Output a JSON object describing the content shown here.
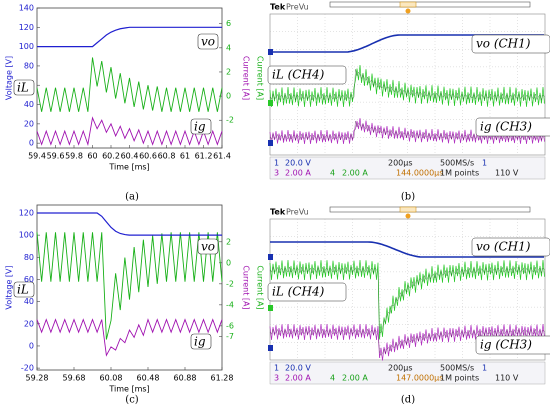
{
  "chart_data": [
    {
      "type": "line",
      "xlabel": "Time [ms]",
      "ylabel": "Voltage [V]",
      "y2labels": [
        "Current [A]",
        "Current [A]"
      ],
      "xlim": [
        59.4,
        61.4
      ],
      "xticks": [
        59.4,
        59.6,
        59.8,
        60,
        60.2,
        60.4,
        60.6,
        60.8,
        61,
        61.2,
        61.4
      ],
      "ylim": [
        -5,
        140
      ],
      "yticks": [
        0,
        20,
        40,
        60,
        80,
        100,
        120,
        140
      ],
      "y2lim": [
        -4.3,
        7.3
      ],
      "y2ticks": [
        6,
        4,
        2,
        0,
        -2
      ],
      "x": [
        59.4,
        59.45,
        59.5,
        59.55,
        59.6,
        59.65,
        59.7,
        59.75,
        59.8,
        59.85,
        59.9,
        59.95,
        60,
        60.05,
        60.1,
        60.15,
        60.2,
        60.25,
        60.3,
        60.35,
        60.4,
        60.45,
        60.5,
        60.55,
        60.6,
        60.65,
        60.7,
        60.75,
        60.8,
        60.85,
        60.9,
        60.95,
        61,
        61.05,
        61.1,
        61.15,
        61.2,
        61.25,
        61.3,
        61.35,
        61.4
      ],
      "series": [
        {
          "name": "vo",
          "color": "#2020d0",
          "values": [
            100,
            100,
            100,
            100,
            100,
            100,
            100,
            100,
            100,
            100,
            100,
            100,
            100,
            104,
            108,
            112,
            115,
            117,
            118.5,
            119.3,
            120,
            120,
            120,
            120,
            120,
            120,
            120,
            120,
            120,
            120,
            120,
            120,
            120,
            120,
            120,
            120,
            120,
            120,
            120,
            120,
            120
          ]
        },
        {
          "name": "iL",
          "color": "#18b018",
          "axis": "y2",
          "values": [
            0.7,
            -1.3,
            0.7,
            -1.3,
            0.7,
            -1.3,
            0.7,
            -1.3,
            0.7,
            -1.3,
            0.7,
            -1.3,
            3.2,
            0.8,
            2.9,
            0.3,
            2.4,
            -0.2,
            1.9,
            -0.6,
            1.5,
            -0.9,
            1.2,
            -1.1,
            0.9,
            -1.2,
            0.8,
            -1.3,
            0.7,
            -1.3,
            0.7,
            -1.3,
            0.7,
            -1.3,
            0.7,
            -1.3,
            0.7,
            -1.3,
            0.7,
            -1.3,
            0.7
          ]
        },
        {
          "name": "ig",
          "color": "#a012b0",
          "axis": "y2",
          "values": [
            -2.9,
            -4.0,
            -2.9,
            -4.0,
            -2.9,
            -4.0,
            -2.9,
            -4.0,
            -2.9,
            -4.0,
            -2.9,
            -4.0,
            -1.8,
            -2.7,
            -2.0,
            -3.0,
            -2.3,
            -3.3,
            -2.5,
            -3.5,
            -2.7,
            -3.7,
            -2.8,
            -3.9,
            -2.9,
            -4.0,
            -2.9,
            -4.0,
            -2.9,
            -4.0,
            -2.9,
            -4.0,
            -2.9,
            -4.0,
            -2.9,
            -4.0,
            -2.9,
            -4.0,
            -2.9,
            -4.0,
            -2.9
          ]
        }
      ]
    },
    {
      "type": "line",
      "xlabel": "Time [ms]",
      "ylabel": "Voltage [V]",
      "y2labels": [
        "Current [A]",
        "Current [A]"
      ],
      "xlim": [
        59.28,
        61.28
      ],
      "xticks": [
        59.28,
        59.68,
        60.08,
        60.48,
        60.88,
        61.28
      ],
      "ylim": [
        -21.7,
        127.2
      ],
      "yticks": [
        -20,
        0,
        20,
        40,
        60,
        80,
        100,
        120
      ],
      "y2lim": [
        -10.2,
        5.5
      ],
      "y2ticks": [
        2,
        0,
        -2,
        -4,
        -6,
        -7
      ],
      "x": [
        59.28,
        59.33,
        59.38,
        59.43,
        59.48,
        59.53,
        59.58,
        59.63,
        59.68,
        59.73,
        59.78,
        59.83,
        59.88,
        59.93,
        59.98,
        60.03,
        60.08,
        60.13,
        60.18,
        60.23,
        60.28,
        60.33,
        60.38,
        60.43,
        60.48,
        60.53,
        60.58,
        60.63,
        60.68,
        60.73,
        60.78,
        60.83,
        60.88,
        60.93,
        60.98,
        61.03,
        61.08,
        61.13,
        61.18,
        61.23,
        61.28
      ],
      "series": [
        {
          "name": "vo",
          "color": "#2020d0",
          "values": [
            120,
            120,
            120,
            120,
            120,
            120,
            120,
            120,
            120,
            120,
            120,
            120,
            120,
            120,
            117,
            112,
            107,
            103.5,
            101.5,
            100.5,
            100,
            100,
            100,
            100,
            100,
            100,
            100,
            100,
            100,
            100,
            100,
            100,
            100,
            100,
            100,
            100,
            100,
            100,
            100,
            100,
            100
          ]
        },
        {
          "name": "iL",
          "color": "#18b018",
          "axis": "y2",
          "values": [
            2.9,
            -1.8,
            2.9,
            -1.8,
            2.9,
            -1.8,
            2.9,
            -1.8,
            2.9,
            -1.8,
            2.9,
            -1.8,
            2.9,
            -1.8,
            2.9,
            -7.3,
            -5.5,
            -1.0,
            -4.5,
            0.5,
            -3.5,
            1.5,
            -2.8,
            2.2,
            -2.3,
            2.6,
            -2.0,
            2.8,
            -1.8,
            2.9,
            -1.8,
            2.9,
            -1.8,
            2.9,
            -1.8,
            2.9,
            -1.8,
            2.9,
            -1.8,
            2.9,
            -1.8
          ]
        },
        {
          "name": "ig",
          "color": "#a012b0",
          "axis": "y2",
          "values": [
            -5.4,
            -6.6,
            -5.4,
            -6.6,
            -5.4,
            -6.6,
            -5.4,
            -6.6,
            -5.4,
            -6.6,
            -5.4,
            -6.6,
            -5.4,
            -6.6,
            -5.4,
            -8.8,
            -8.0,
            -8.3,
            -7.2,
            -7.6,
            -6.4,
            -7.1,
            -5.9,
            -6.9,
            -5.4,
            -6.6,
            -5.4,
            -6.6,
            -5.4,
            -6.6,
            -5.4,
            -6.6,
            -5.4,
            -6.6,
            -5.4,
            -6.6,
            -5.4,
            -6.6,
            -5.4,
            -6.6,
            -5.4
          ]
        }
      ]
    }
  ],
  "scopes": [
    {
      "brand": "Tek",
      "mode": "PreVu",
      "labels": [
        "vo (CH1)",
        "iL (CH4)",
        "ig (CH3)"
      ],
      "readouts": [
        "1",
        "20.0 V",
        "3",
        "2.00 A",
        "4",
        "2.00 A",
        "200μs",
        "144.0000μs",
        "500MS/s",
        "1M points",
        "1",
        "110 V"
      ]
    },
    {
      "brand": "Tek",
      "mode": "PreVu",
      "labels": [
        "vo (CH1)",
        "iL (CH4)",
        "ig (CH3)"
      ],
      "readouts": [
        "1",
        "20.0 V",
        "3",
        "2.00 A",
        "4",
        "2.00 A",
        "200μs",
        "147.0000μs",
        "500MS/s",
        "1M points",
        "1",
        "110 V"
      ]
    }
  ],
  "captions": [
    "(a)",
    "(b)",
    "(c)",
    "(d)"
  ]
}
